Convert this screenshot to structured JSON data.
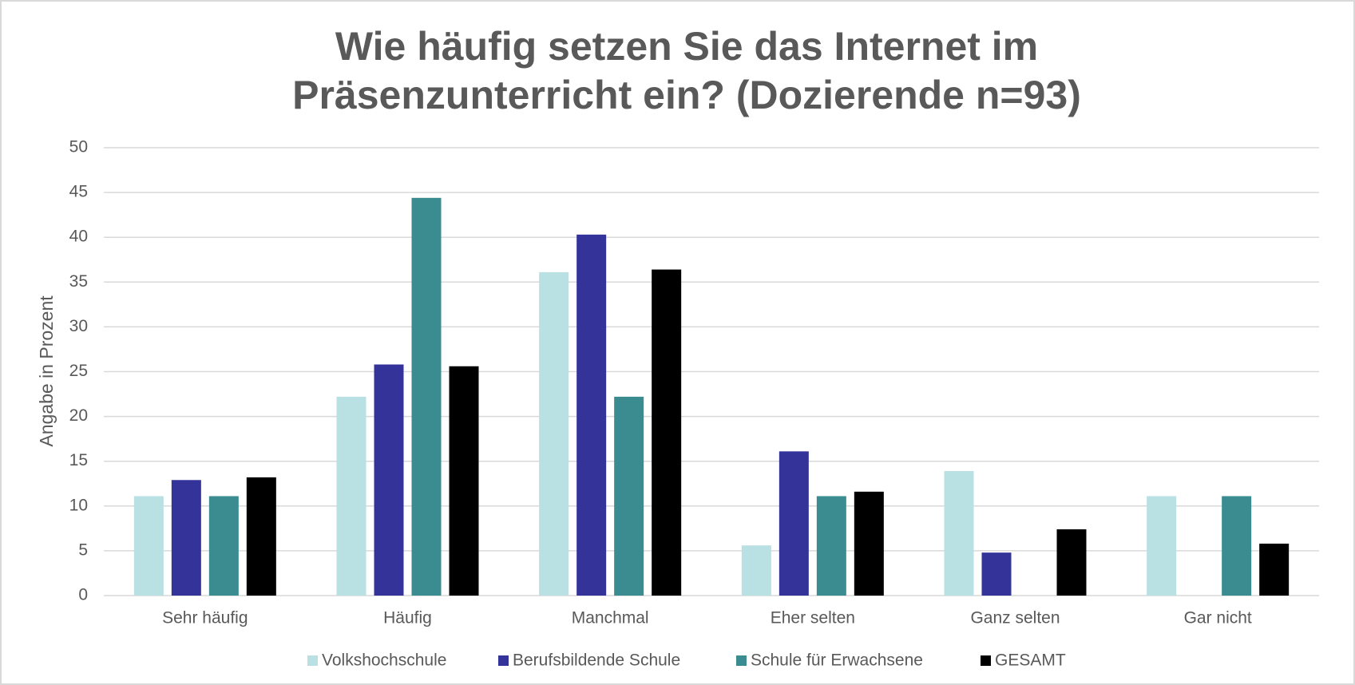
{
  "chart_data": {
    "type": "bar",
    "title": [
      "Wie häufig setzen Sie das Internet im",
      "Präsenzunterricht ein? (Dozierende n=93)"
    ],
    "y_label": "Angabe in Prozent",
    "categories": [
      "Sehr häufig",
      "Häufig",
      "Manchmal",
      "Eher selten",
      "Ganz selten",
      "Gar nicht"
    ],
    "series": [
      {
        "name": "Volkshochschule",
        "color": "#b9e0e3",
        "values": [
          11.1,
          22.2,
          36.1,
          5.6,
          13.9,
          11.1
        ]
      },
      {
        "name": "Berufsbildende Schule",
        "color": "#333399",
        "values": [
          12.9,
          25.8,
          40.3,
          16.1,
          4.8,
          0
        ]
      },
      {
        "name": "Schule für Erwachsene",
        "color": "#3a8c91",
        "values": [
          11.1,
          44.4,
          22.2,
          11.1,
          0,
          11.1
        ]
      },
      {
        "name": "GESAMT",
        "color": "#000000",
        "values": [
          13.2,
          25.6,
          36.4,
          11.6,
          7.4,
          5.8
        ]
      }
    ],
    "ylim": [
      0,
      50
    ],
    "yticks": [
      0,
      5,
      10,
      15,
      20,
      25,
      30,
      35,
      40,
      45,
      50
    ],
    "grid": true,
    "legend": "bottom"
  }
}
